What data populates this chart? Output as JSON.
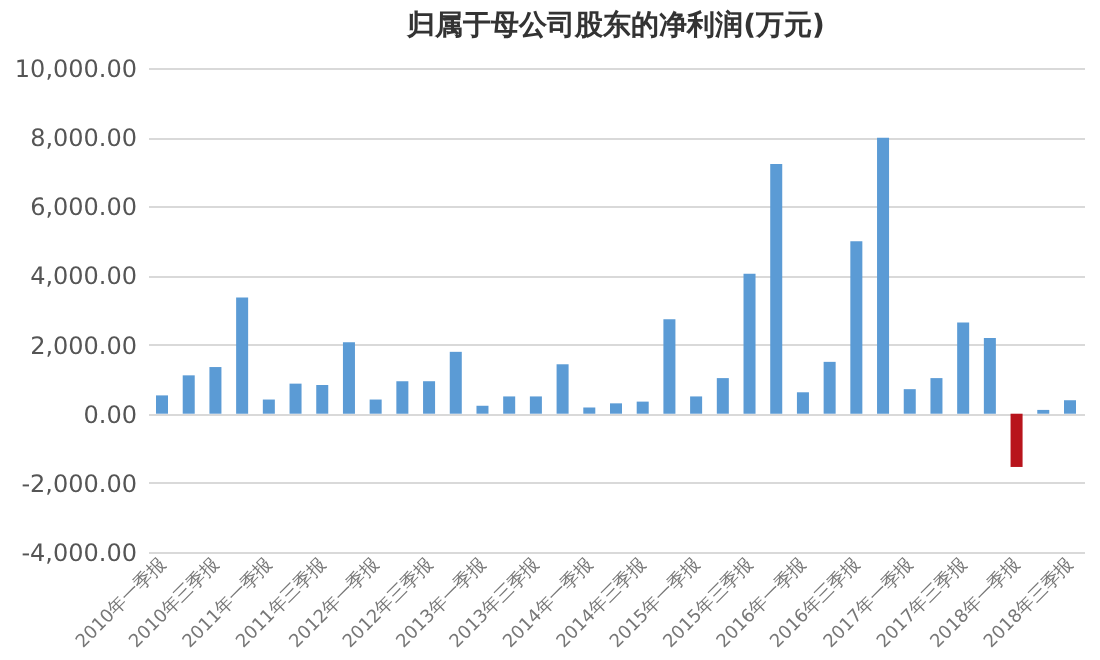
{
  "chart_data": {
    "type": "bar",
    "title": "归属于母公司股东的净利润(万元)",
    "categories": [
      "2010年一季报",
      null,
      "2010年三季报",
      null,
      "2011年一季报",
      null,
      "2011年三季报",
      null,
      "2012年一季报",
      null,
      "2012年三季报",
      null,
      "2013年一季报",
      null,
      "2013年三季报",
      null,
      "2014年一季报",
      null,
      "2014年三季报",
      null,
      "2015年一季报",
      null,
      "2015年三季报",
      null,
      "2016年一季报",
      null,
      "2016年三季报",
      null,
      "2017年一季报",
      null,
      "2017年三季报",
      null,
      "2018年一季报",
      null,
      "2018年三季报"
    ],
    "values": [
      530,
      1110,
      1350,
      3360,
      410,
      870,
      830,
      2070,
      410,
      940,
      940,
      1790,
      230,
      500,
      500,
      1430,
      180,
      300,
      350,
      2730,
      500,
      1030,
      4050,
      7220,
      620,
      1500,
      4990,
      7980,
      710,
      1030,
      2640,
      2190,
      -1540,
      110,
      390
    ],
    "colors": [
      "#5b9bd5",
      "#5b9bd5",
      "#5b9bd5",
      "#5b9bd5",
      "#5b9bd5",
      "#5b9bd5",
      "#5b9bd5",
      "#5b9bd5",
      "#5b9bd5",
      "#5b9bd5",
      "#5b9bd5",
      "#5b9bd5",
      "#5b9bd5",
      "#5b9bd5",
      "#5b9bd5",
      "#5b9bd5",
      "#5b9bd5",
      "#5b9bd5",
      "#5b9bd5",
      "#5b9bd5",
      "#5b9bd5",
      "#5b9bd5",
      "#5b9bd5",
      "#5b9bd5",
      "#5b9bd5",
      "#5b9bd5",
      "#5b9bd5",
      "#5b9bd5",
      "#5b9bd5",
      "#5b9bd5",
      "#5b9bd5",
      "#5b9bd5",
      "#b8141c",
      "#5b9bd5",
      "#5b9bd5"
    ],
    "ylim": [
      -4000,
      10000
    ],
    "yticks": [
      {
        "value": -4000,
        "label": "-4,000.00"
      },
      {
        "value": -2000,
        "label": "-2,000.00"
      },
      {
        "value": 0,
        "label": "0.00"
      },
      {
        "value": 2000,
        "label": "2,000.00"
      },
      {
        "value": 4000,
        "label": "4,000.00"
      },
      {
        "value": 6000,
        "label": "6,000.00"
      },
      {
        "value": 8000,
        "label": "8,000.00"
      },
      {
        "value": 10000,
        "label": "10,000.00"
      }
    ],
    "grid": "y"
  }
}
